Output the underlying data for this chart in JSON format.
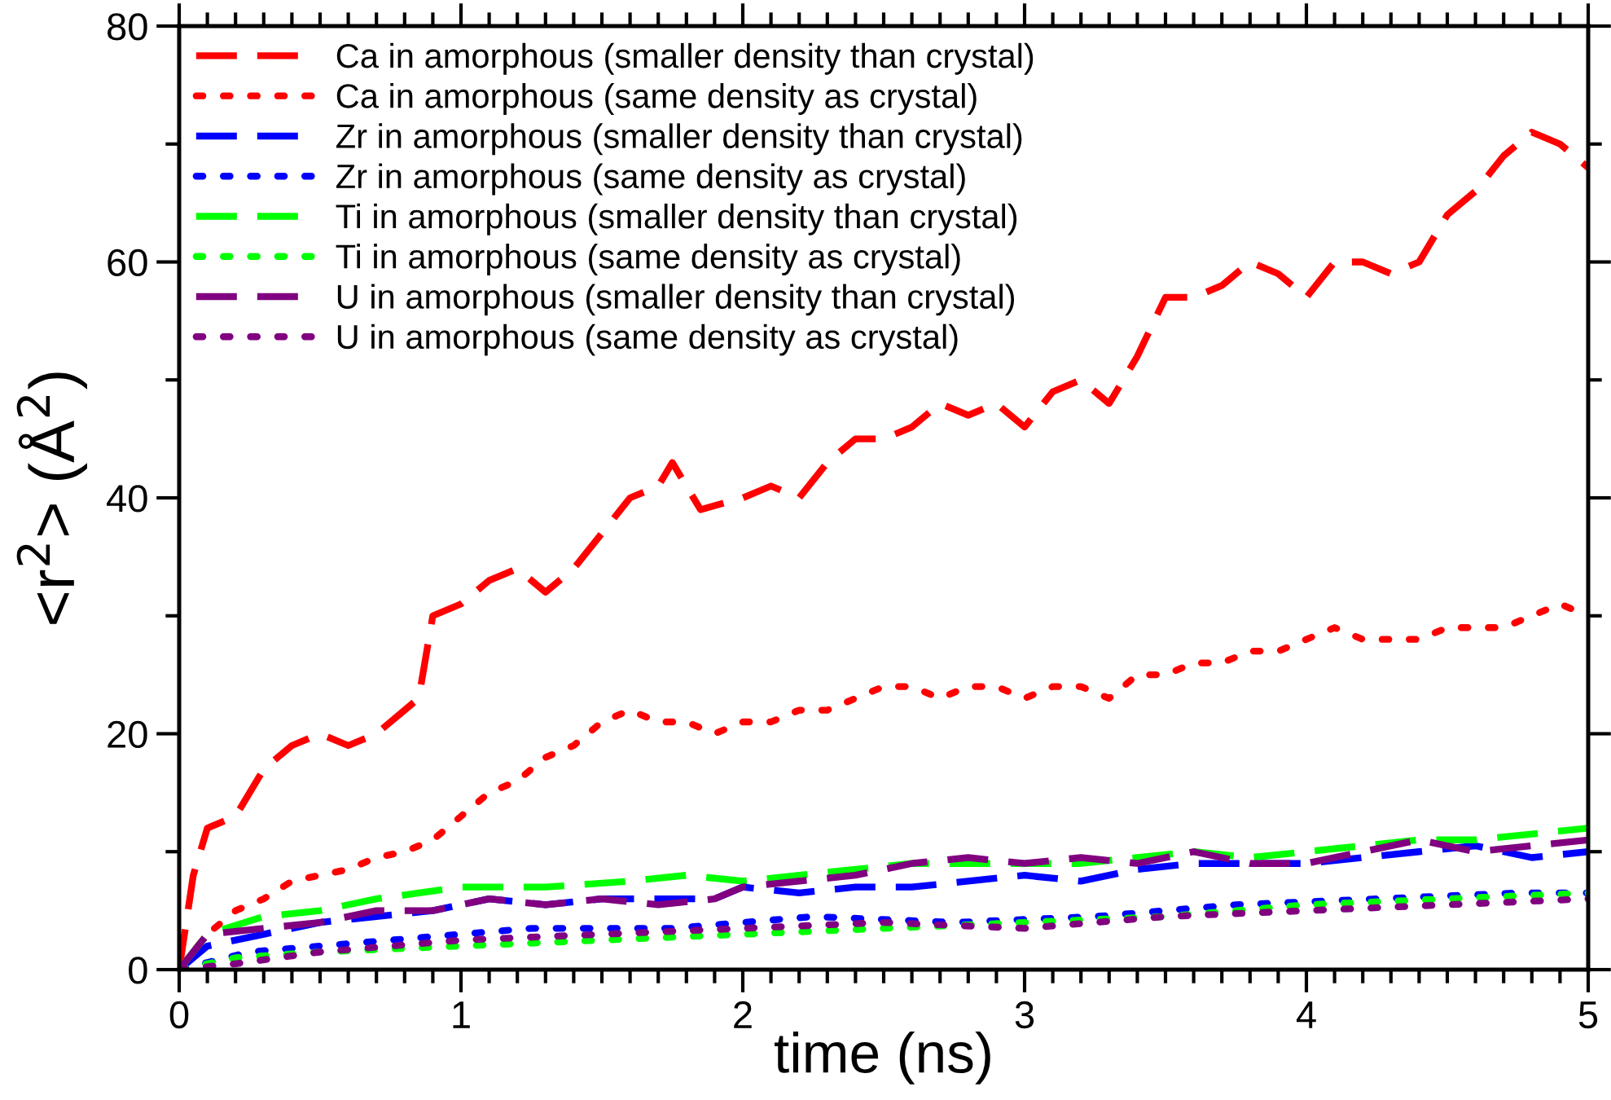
{
  "chart_data": {
    "type": "line",
    "xlabel": "time (ns)",
    "ylabel": "<r$^{2}$> (Å$^{2}$)",
    "xlim": [
      0,
      5
    ],
    "ylim": [
      0,
      80
    ],
    "xticks": [
      0,
      1,
      2,
      3,
      4,
      5
    ],
    "yticks": [
      0,
      20,
      40,
      60,
      80
    ],
    "grid": false,
    "legend": "top left",
    "series": [
      {
        "name": "Ca in amorphous (smaller density than crystal)",
        "color": "#ff0000",
        "line_style": "dashed",
        "x": [
          0,
          0.05,
          0.1,
          0.2,
          0.3,
          0.4,
          0.5,
          0.6,
          0.7,
          0.8,
          0.85,
          0.9,
          1.0,
          1.1,
          1.2,
          1.3,
          1.4,
          1.5,
          1.6,
          1.7,
          1.75,
          1.85,
          2.0,
          2.1,
          2.2,
          2.3,
          2.4,
          2.5,
          2.6,
          2.7,
          2.8,
          2.9,
          3.0,
          3.1,
          3.2,
          3.3,
          3.4,
          3.5,
          3.6,
          3.7,
          3.8,
          3.9,
          4.0,
          4.1,
          4.2,
          4.3,
          4.4,
          4.5,
          4.6,
          4.7,
          4.8,
          4.9,
          5.0
        ],
        "values": [
          0,
          8,
          12,
          13,
          17,
          19,
          20,
          19,
          20,
          22,
          23,
          30,
          31,
          33,
          34,
          32,
          34,
          37,
          40,
          41,
          43,
          39,
          40,
          41,
          40,
          43,
          45,
          45,
          46,
          48,
          47,
          48,
          46,
          49,
          50,
          48,
          52,
          57,
          57,
          58,
          60,
          59,
          57,
          60,
          60,
          59,
          60,
          64,
          66,
          69,
          71,
          70,
          68
        ]
      },
      {
        "name": "Ca in amorphous (same density as crystal)",
        "color": "#ff0000",
        "line_style": "dotted",
        "x": [
          0,
          0.1,
          0.2,
          0.3,
          0.4,
          0.5,
          0.6,
          0.7,
          0.8,
          0.9,
          1.0,
          1.1,
          1.2,
          1.3,
          1.4,
          1.5,
          1.6,
          1.7,
          1.8,
          1.9,
          2.0,
          2.1,
          2.2,
          2.3,
          2.4,
          2.5,
          2.6,
          2.7,
          2.8,
          2.9,
          3.0,
          3.1,
          3.2,
          3.3,
          3.4,
          3.5,
          3.6,
          3.7,
          3.8,
          3.9,
          4.0,
          4.1,
          4.2,
          4.3,
          4.4,
          4.5,
          4.6,
          4.7,
          4.8,
          4.9,
          5.0
        ],
        "values": [
          0,
          3,
          5,
          6,
          7.5,
          8,
          8.5,
          9.5,
          10,
          11,
          13,
          15,
          16,
          18,
          19,
          21,
          22,
          21,
          21,
          20,
          21,
          21,
          22,
          22,
          23,
          24,
          24,
          23,
          24,
          24,
          23,
          24,
          24,
          23,
          25,
          25,
          26,
          26,
          27,
          27,
          28,
          29,
          28,
          28,
          28,
          29,
          29,
          29,
          30,
          31,
          30
        ]
      },
      {
        "name": "Zr in amorphous (smaller density than crystal)",
        "color": "#0000ff",
        "line_style": "dashed",
        "x": [
          0,
          0.1,
          0.3,
          0.5,
          0.7,
          0.9,
          1.1,
          1.3,
          1.5,
          1.7,
          1.9,
          2.0,
          2.2,
          2.4,
          2.6,
          2.8,
          3.0,
          3.2,
          3.4,
          3.6,
          3.8,
          4.0,
          4.2,
          4.4,
          4.6,
          4.8,
          5.0
        ],
        "values": [
          0,
          2,
          3,
          4,
          4.5,
          5,
          6,
          5.5,
          6,
          6,
          6,
          7,
          6.5,
          7,
          7,
          7.5,
          8,
          7.5,
          8.5,
          9,
          9,
          9,
          9.5,
          10,
          10.5,
          9.5,
          10
        ]
      },
      {
        "name": "Zr in amorphous (same density as crystal)",
        "color": "#0000ff",
        "line_style": "dotted",
        "x": [
          0,
          0.25,
          0.75,
          1.25,
          1.75,
          2.25,
          2.75,
          3.25,
          3.75,
          4.25,
          4.75,
          5.0
        ],
        "values": [
          0,
          1.5,
          2.5,
          3.5,
          3.5,
          4.5,
          4,
          4.5,
          5.5,
          6,
          6.5,
          6.5
        ]
      },
      {
        "name": "Ti in amorphous (smaller density than crystal)",
        "color": "#00ff00",
        "line_style": "dashed",
        "x": [
          0,
          0.1,
          0.3,
          0.5,
          0.7,
          1.0,
          1.3,
          1.6,
          1.8,
          2.0,
          2.2,
          2.4,
          2.6,
          2.8,
          3.0,
          3.2,
          3.4,
          3.6,
          3.8,
          4.0,
          4.2,
          4.4,
          4.6,
          4.8,
          5.0
        ],
        "values": [
          0,
          3,
          4.5,
          5,
          6,
          7,
          7,
          7.5,
          8,
          7.5,
          8,
          8.5,
          9,
          9,
          9,
          9,
          9.5,
          10,
          9.5,
          10,
          10.5,
          11,
          11,
          11.5,
          12
        ]
      },
      {
        "name": "Ti in amorphous (same density as crystal)",
        "color": "#00ff00",
        "line_style": "dotted",
        "x": [
          0,
          0.2,
          0.5,
          1.0,
          1.5,
          2.0,
          2.5,
          3.0,
          3.5,
          4.0,
          4.5,
          5.0
        ],
        "values": [
          0,
          1,
          1.5,
          2,
          2.5,
          3,
          3.5,
          4,
          4.5,
          5.5,
          6,
          6.5
        ]
      },
      {
        "name": "U in amorphous (smaller density than crystal)",
        "color": "#800080",
        "line_style": "dashed",
        "x": [
          0,
          0.1,
          0.3,
          0.5,
          0.7,
          0.9,
          1.1,
          1.3,
          1.5,
          1.7,
          1.9,
          2.0,
          2.2,
          2.4,
          2.6,
          2.8,
          3.0,
          3.2,
          3.4,
          3.6,
          3.8,
          4.0,
          4.2,
          4.4,
          4.6,
          4.8,
          5.0
        ],
        "values": [
          0,
          3,
          3.5,
          4,
          5,
          5,
          6,
          5.5,
          6,
          5.5,
          6,
          7,
          7.5,
          8,
          9,
          9.5,
          9,
          9.5,
          9,
          10,
          9,
          9,
          10,
          11,
          10,
          10.5,
          11
        ]
      },
      {
        "name": "U in amorphous (same density as crystal)",
        "color": "#800080",
        "line_style": "dotted",
        "x": [
          0,
          0.2,
          0.5,
          1.0,
          1.5,
          2.0,
          2.5,
          3.0,
          3.5,
          4.0,
          4.5,
          5.0
        ],
        "values": [
          0,
          0.5,
          1.5,
          2.5,
          3,
          3.5,
          4,
          3.5,
          4.5,
          5,
          5.5,
          6
        ]
      }
    ]
  }
}
